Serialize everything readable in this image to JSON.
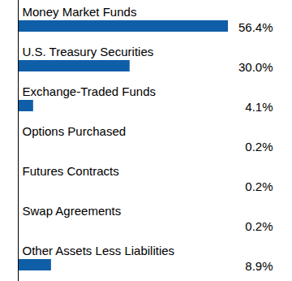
{
  "chart_data": {
    "type": "bar",
    "orientation": "horizontal",
    "categories": [
      "Money Market Funds",
      "U.S. Treasury Securities",
      "Exchange-Traded Funds",
      "Options Purchased",
      "Futures Contracts",
      "Swap Agreements",
      "Other Assets Less Liabilities"
    ],
    "values": [
      56.4,
      30.0,
      4.1,
      0.2,
      0.2,
      0.2,
      8.9
    ],
    "value_labels": [
      "56.4%",
      "30.0%",
      "4.1%",
      "0.2%",
      "0.2%",
      "0.2%",
      "8.9%"
    ],
    "color": "#0f5ea8",
    "data_labels": true,
    "tick_labels": false
  }
}
